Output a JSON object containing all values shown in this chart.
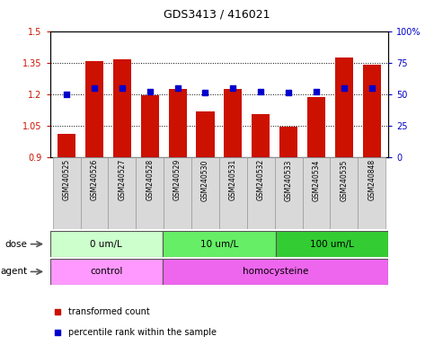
{
  "title": "GDS3413 / 416021",
  "samples": [
    "GSM240525",
    "GSM240526",
    "GSM240527",
    "GSM240528",
    "GSM240529",
    "GSM240530",
    "GSM240531",
    "GSM240532",
    "GSM240533",
    "GSM240534",
    "GSM240535",
    "GSM240848"
  ],
  "transformed_count": [
    1.01,
    1.355,
    1.365,
    1.195,
    1.225,
    1.115,
    1.225,
    1.105,
    1.045,
    1.185,
    1.375,
    1.34
  ],
  "percentile_rank": [
    50,
    55,
    55,
    52,
    55,
    51,
    55,
    52,
    51,
    52,
    55,
    55
  ],
  "ylim_left": [
    0.9,
    1.5
  ],
  "ylim_right": [
    0,
    100
  ],
  "yticks_left": [
    0.9,
    1.05,
    1.2,
    1.35,
    1.5
  ],
  "yticks_right": [
    0,
    25,
    50,
    75,
    100
  ],
  "ytick_labels_left": [
    "0.9",
    "1.05",
    "1.2",
    "1.35",
    "1.5"
  ],
  "ytick_labels_right": [
    "0",
    "25",
    "50",
    "75",
    "100%"
  ],
  "bar_color": "#cc1100",
  "dot_color": "#0000cc",
  "background_color": "#ffffff",
  "dose_groups": [
    {
      "label": "0 um/L",
      "count": 4,
      "color": "#ccffcc"
    },
    {
      "label": "10 um/L",
      "count": 4,
      "color": "#66ee66"
    },
    {
      "label": "100 um/L",
      "count": 4,
      "color": "#33cc33"
    }
  ],
  "agent_groups": [
    {
      "label": "control",
      "count": 4,
      "color": "#ff99ff"
    },
    {
      "label": "homocysteine",
      "count": 8,
      "color": "#ee66ee"
    }
  ],
  "legend_items": [
    {
      "label": "transformed count",
      "color": "#cc1100"
    },
    {
      "label": "percentile rank within the sample",
      "color": "#0000cc"
    }
  ],
  "dose_label": "dose",
  "agent_label": "agent",
  "tick_color_left": "#cc1100",
  "tick_color_right": "#0000cc"
}
